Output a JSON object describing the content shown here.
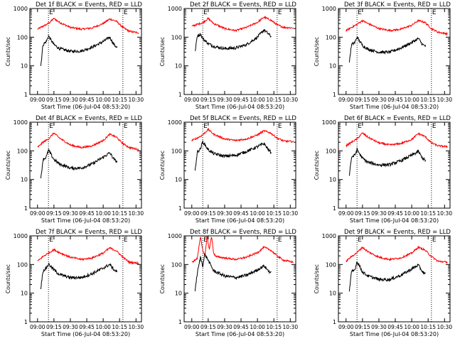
{
  "colors": {
    "events": "#000000",
    "lld": "#ff0000",
    "axis": "#000000"
  },
  "chart_data": [
    {
      "type": "line",
      "title": "Det 1f BLACK = Events, RED = LLD",
      "ylabel": "Counts/sec",
      "xlabel": "Start Time (06-Jul-04 08:53:20)",
      "yscale": "log",
      "ylim": [
        1,
        1000
      ],
      "yticks": [
        "1",
        "10",
        "100",
        "1000"
      ],
      "xticks": [
        "09:00",
        "09:15",
        "09:30",
        "09:45",
        "10:00",
        "10:15",
        "10:30"
      ],
      "xlim": [
        "08:53",
        "10:35"
      ],
      "markers": [
        {
          "x": "09:10",
          "label": "E"
        },
        {
          "x": "10:18",
          "label": "E"
        }
      ],
      "series": [
        {
          "key": "lld",
          "x": [
            "09:00",
            "09:05",
            "09:10",
            "09:15",
            "09:20",
            "09:30",
            "09:40",
            "09:50",
            "10:00",
            "10:06",
            "10:12",
            "10:18",
            "10:24",
            "10:33"
          ],
          "values": [
            190,
            240,
            300,
            450,
            330,
            220,
            190,
            210,
            300,
            430,
            360,
            220,
            160,
            140
          ]
        },
        {
          "key": "events",
          "x": [
            "09:03",
            "09:05",
            "09:08",
            "09:10",
            "09:15",
            "09:20",
            "09:30",
            "09:40",
            "09:50",
            "10:00",
            "10:06",
            "10:10",
            "10:13"
          ],
          "values": [
            10,
            55,
            70,
            110,
            55,
            40,
            32,
            33,
            45,
            70,
            100,
            55,
            42
          ]
        }
      ]
    },
    {
      "type": "line",
      "title": "Det 2f BLACK = Events, RED = LLD",
      "ylabel": "Counts/sec",
      "xlabel": "Start Time (06-Jul-04 08:53:20)",
      "yscale": "log",
      "ylim": [
        1,
        1000
      ],
      "yticks": [
        "1",
        "10",
        "100",
        "1000"
      ],
      "xticks": [
        "09:00",
        "09:15",
        "09:30",
        "09:45",
        "10:00",
        "10:15",
        "10:30"
      ],
      "xlim": [
        "08:53",
        "10:35"
      ],
      "markers": [
        {
          "x": "09:10",
          "label": "E"
        },
        {
          "x": "10:18",
          "label": "E"
        }
      ],
      "series": [
        {
          "key": "lld",
          "x": [
            "09:00",
            "09:05",
            "09:10",
            "09:15",
            "09:20",
            "09:30",
            "09:40",
            "09:50",
            "10:00",
            "10:06",
            "10:12",
            "10:18",
            "10:24",
            "10:33"
          ],
          "values": [
            240,
            280,
            320,
            450,
            300,
            200,
            170,
            220,
            330,
            500,
            400,
            270,
            220,
            210
          ]
        },
        {
          "key": "events",
          "x": [
            "09:03",
            "09:05",
            "09:08",
            "09:10",
            "09:15",
            "09:20",
            "09:30",
            "09:40",
            "09:50",
            "10:00",
            "10:06",
            "10:10",
            "10:13"
          ],
          "values": [
            30,
            110,
            130,
            90,
            60,
            48,
            40,
            42,
            55,
            100,
            180,
            130,
            100
          ]
        }
      ]
    },
    {
      "type": "line",
      "title": "Det 3f BLACK = Events, RED = LLD",
      "ylabel": "Counts/sec",
      "xlabel": "Start Time (06-Jul-04 08:53:20)",
      "yscale": "log",
      "ylim": [
        1,
        1000
      ],
      "yticks": [
        "1",
        "10",
        "100",
        "1000"
      ],
      "xticks": [
        "09:00",
        "09:15",
        "09:30",
        "09:45",
        "10:00",
        "10:15",
        "10:30"
      ],
      "xlim": [
        "08:53",
        "10:35"
      ],
      "markers": [
        {
          "x": "09:10",
          "label": "E"
        },
        {
          "x": "10:18",
          "label": "E"
        }
      ],
      "series": [
        {
          "key": "lld",
          "x": [
            "09:00",
            "09:05",
            "09:10",
            "09:15",
            "09:20",
            "09:30",
            "09:40",
            "09:50",
            "10:00",
            "10:06",
            "10:12",
            "10:18",
            "10:24",
            "10:33"
          ],
          "values": [
            170,
            220,
            280,
            380,
            300,
            200,
            170,
            190,
            260,
            380,
            330,
            200,
            150,
            130
          ]
        },
        {
          "key": "events",
          "x": [
            "09:03",
            "09:05",
            "09:08",
            "09:10",
            "09:15",
            "09:20",
            "09:30",
            "09:40",
            "09:50",
            "10:00",
            "10:06",
            "10:10",
            "10:13"
          ],
          "values": [
            14,
            55,
            65,
            100,
            52,
            38,
            30,
            30,
            42,
            65,
            90,
            55,
            48
          ]
        }
      ]
    },
    {
      "type": "line",
      "title": "Det 4f BLACK = Events, RED = LLD",
      "ylabel": "Counts/sec",
      "xlabel": "Start Time (06-Jul-04 08:53:20)",
      "yscale": "log",
      "ylim": [
        1,
        1000
      ],
      "yticks": [
        "1",
        "10",
        "100",
        "1000"
      ],
      "xticks": [
        "09:00",
        "09:15",
        "09:30",
        "09:45",
        "10:00",
        "10:15",
        "10:30"
      ],
      "xlim": [
        "08:53",
        "10:35"
      ],
      "markers": [
        {
          "x": "09:10",
          "label": "E"
        },
        {
          "x": "10:18",
          "label": "E"
        }
      ],
      "series": [
        {
          "key": "lld",
          "x": [
            "09:00",
            "09:05",
            "09:10",
            "09:15",
            "09:20",
            "09:30",
            "09:40",
            "09:50",
            "10:00",
            "10:06",
            "10:12",
            "10:18",
            "10:24",
            "10:33"
          ],
          "values": [
            130,
            200,
            260,
            420,
            280,
            160,
            130,
            150,
            230,
            380,
            300,
            180,
            130,
            110
          ]
        },
        {
          "key": "events",
          "x": [
            "09:03",
            "09:05",
            "09:08",
            "09:10",
            "09:15",
            "09:20",
            "09:30",
            "09:40",
            "09:50",
            "10:00",
            "10:06",
            "10:10",
            "10:13"
          ],
          "values": [
            10,
            50,
            60,
            105,
            50,
            35,
            25,
            25,
            35,
            60,
            85,
            50,
            40
          ]
        }
      ]
    },
    {
      "type": "line",
      "title": "Det 5f BLACK = Events, RED = LLD",
      "ylabel": "Counts/sec",
      "xlabel": "Start Time (06-Jul-04 08:53:20)",
      "yscale": "log",
      "ylim": [
        1,
        1000
      ],
      "yticks": [
        "1",
        "10",
        "100",
        "1000"
      ],
      "xticks": [
        "09:00",
        "09:15",
        "09:30",
        "09:45",
        "10:00",
        "10:15",
        "10:30"
      ],
      "xlim": [
        "08:53",
        "10:35"
      ],
      "markers": [
        {
          "x": "09:10",
          "label": "E"
        },
        {
          "x": "10:18",
          "label": "E"
        }
      ],
      "series": [
        {
          "key": "lld",
          "x": [
            "09:00",
            "09:05",
            "09:10",
            "09:15",
            "09:20",
            "09:30",
            "09:40",
            "09:50",
            "10:00",
            "10:06",
            "10:12",
            "10:18",
            "10:24",
            "10:33"
          ],
          "values": [
            230,
            280,
            360,
            560,
            380,
            260,
            230,
            260,
            360,
            500,
            420,
            280,
            220,
            210
          ]
        },
        {
          "key": "events",
          "x": [
            "09:03",
            "09:05",
            "09:08",
            "09:10",
            "09:15",
            "09:20",
            "09:30",
            "09:40",
            "09:50",
            "10:00",
            "10:06",
            "10:10",
            "10:13"
          ],
          "values": [
            20,
            90,
            120,
            210,
            110,
            80,
            65,
            70,
            95,
            140,
            180,
            110,
            85
          ]
        }
      ]
    },
    {
      "type": "line",
      "title": "Det 6f BLACK = Events, RED = LLD",
      "ylabel": "Counts/sec",
      "xlabel": "Start Time (06-Jul-04 08:53:20)",
      "yscale": "log",
      "ylim": [
        1,
        1000
      ],
      "yticks": [
        "1",
        "10",
        "100",
        "1000"
      ],
      "xticks": [
        "09:00",
        "09:15",
        "09:30",
        "09:45",
        "10:00",
        "10:15",
        "10:30"
      ],
      "xlim": [
        "08:53",
        "10:35"
      ],
      "markers": [
        {
          "x": "09:10",
          "label": "E"
        },
        {
          "x": "10:18",
          "label": "E"
        }
      ],
      "series": [
        {
          "key": "lld",
          "x": [
            "09:00",
            "09:05",
            "09:10",
            "09:15",
            "09:20",
            "09:30",
            "09:40",
            "09:50",
            "10:00",
            "10:06",
            "10:12",
            "10:18",
            "10:24",
            "10:33"
          ],
          "values": [
            150,
            200,
            260,
            420,
            300,
            190,
            160,
            180,
            250,
            400,
            320,
            190,
            150,
            140
          ]
        },
        {
          "key": "events",
          "x": [
            "09:03",
            "09:05",
            "09:08",
            "09:10",
            "09:15",
            "09:20",
            "09:30",
            "09:40",
            "09:50",
            "10:00",
            "10:06",
            "10:10",
            "10:13"
          ],
          "values": [
            15,
            60,
            70,
            110,
            55,
            40,
            32,
            33,
            45,
            70,
            95,
            55,
            45
          ]
        }
      ]
    },
    {
      "type": "line",
      "title": "Det 7f BLACK = Events, RED = LLD",
      "ylabel": "Counts/sec",
      "xlabel": "Start Time (06-Jul-04 08:53:20)",
      "yscale": "log",
      "ylim": [
        1,
        1000
      ],
      "yticks": [
        "1",
        "10",
        "100",
        "1000"
      ],
      "xticks": [
        "09:00",
        "09:15",
        "09:30",
        "09:45",
        "10:00",
        "10:15",
        "10:30"
      ],
      "xlim": [
        "08:53",
        "10:35"
      ],
      "markers": [
        {
          "x": "09:10",
          "label": "E"
        },
        {
          "x": "10:18",
          "label": "E"
        }
      ],
      "series": [
        {
          "key": "lld",
          "x": [
            "09:00",
            "09:05",
            "09:10",
            "09:15",
            "09:20",
            "09:30",
            "09:40",
            "09:50",
            "10:00",
            "10:06",
            "10:12",
            "10:18",
            "10:24",
            "10:33"
          ],
          "values": [
            130,
            190,
            250,
            330,
            260,
            180,
            150,
            170,
            250,
            380,
            300,
            180,
            120,
            110
          ]
        },
        {
          "key": "events",
          "x": [
            "09:03",
            "09:05",
            "09:08",
            "09:10",
            "09:15",
            "09:20",
            "09:30",
            "09:40",
            "09:50",
            "10:00",
            "10:06",
            "10:10",
            "10:13"
          ],
          "values": [
            15,
            60,
            75,
            105,
            65,
            45,
            35,
            35,
            48,
            75,
            100,
            65,
            55
          ]
        }
      ]
    },
    {
      "type": "line",
      "title": "Det 8f BLACK = Events, RED = LLD",
      "ylabel": "Counts/sec",
      "xlabel": "Start Time (06-Jul-04 08:53:20)",
      "yscale": "log",
      "ylim": [
        1,
        1000
      ],
      "yticks": [
        "1",
        "10",
        "100",
        "1000"
      ],
      "xticks": [
        "09:00",
        "09:15",
        "09:30",
        "09:45",
        "10:00",
        "10:15",
        "10:30"
      ],
      "xlim": [
        "08:53",
        "10:35"
      ],
      "markers": [
        {
          "x": "09:10",
          "label": "E"
        },
        {
          "x": "10:18",
          "label": "E"
        }
      ],
      "series": [
        {
          "key": "lld",
          "x": [
            "09:00",
            "09:05",
            "09:08",
            "09:10",
            "09:12",
            "09:14",
            "09:16",
            "09:18",
            "09:20",
            "09:22",
            "09:30",
            "09:40",
            "09:50",
            "10:00",
            "10:06",
            "10:12",
            "10:18",
            "10:24",
            "10:33"
          ],
          "values": [
            120,
            160,
            1000,
            300,
            200,
            1000,
            320,
            1000,
            250,
            190,
            170,
            150,
            180,
            260,
            400,
            320,
            200,
            140,
            120
          ]
        },
        {
          "key": "events",
          "x": [
            "09:03",
            "09:05",
            "09:08",
            "09:10",
            "09:12",
            "09:15",
            "09:20",
            "09:30",
            "09:40",
            "09:50",
            "10:00",
            "10:06",
            "10:10",
            "10:13"
          ],
          "values": [
            12,
            50,
            180,
            90,
            230,
            140,
            60,
            40,
            35,
            42,
            65,
            90,
            60,
            50
          ]
        }
      ]
    },
    {
      "type": "line",
      "title": "Det 9f BLACK = Events, RED = LLD",
      "ylabel": "Counts/sec",
      "xlabel": "Start Time (06-Jul-04 08:53:20)",
      "yscale": "log",
      "ylim": [
        1,
        1000
      ],
      "yticks": [
        "1",
        "10",
        "100",
        "1000"
      ],
      "xticks": [
        "09:00",
        "09:15",
        "09:30",
        "09:45",
        "10:00",
        "10:15",
        "10:30"
      ],
      "xlim": [
        "08:53",
        "10:35"
      ],
      "markers": [
        {
          "x": "09:10",
          "label": "E"
        },
        {
          "x": "10:18",
          "label": "E"
        }
      ],
      "series": [
        {
          "key": "lld",
          "x": [
            "09:00",
            "09:05",
            "09:10",
            "09:15",
            "09:20",
            "09:30",
            "09:40",
            "09:50",
            "10:00",
            "10:06",
            "10:12",
            "10:18",
            "10:24",
            "10:33"
          ],
          "values": [
            130,
            190,
            260,
            400,
            280,
            180,
            150,
            170,
            250,
            400,
            320,
            190,
            130,
            120
          ]
        },
        {
          "key": "events",
          "x": [
            "09:03",
            "09:05",
            "09:08",
            "09:10",
            "09:15",
            "09:20",
            "09:30",
            "09:40",
            "09:50",
            "10:00",
            "10:06",
            "10:10",
            "10:13"
          ],
          "values": [
            12,
            55,
            65,
            130,
            55,
            40,
            30,
            30,
            42,
            70,
            95,
            55,
            45
          ]
        }
      ]
    }
  ]
}
